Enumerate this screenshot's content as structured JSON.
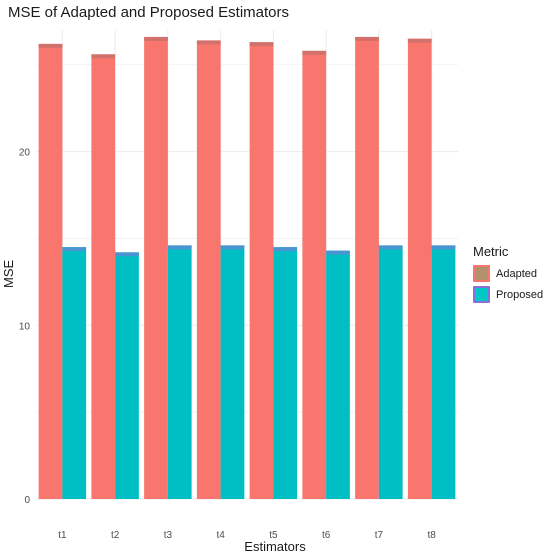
{
  "chart_data": {
    "type": "bar",
    "title": "MSE of Adapted and Proposed Estimators",
    "xlabel": "Estimators",
    "ylabel": "MSE",
    "categories": [
      "t1",
      "t2",
      "t3",
      "t4",
      "t5",
      "t6",
      "t7",
      "t8"
    ],
    "series": [
      {
        "name": "Adapted",
        "values": [
          26.2,
          25.6,
          26.6,
          26.4,
          26.3,
          25.8,
          26.6,
          26.5
        ],
        "color": "#f8766d"
      },
      {
        "name": "Proposed",
        "values": [
          14.5,
          14.2,
          14.6,
          14.6,
          14.5,
          14.3,
          14.6,
          14.6
        ],
        "color": "#00bfc4"
      }
    ],
    "ylim": [
      0,
      27
    ],
    "yticks": [
      0,
      10,
      20
    ],
    "grid": true,
    "legend": {
      "title": "Metric",
      "position": "right",
      "swatch_colors": [
        "#b3916e",
        "#00c8c8"
      ]
    }
  }
}
